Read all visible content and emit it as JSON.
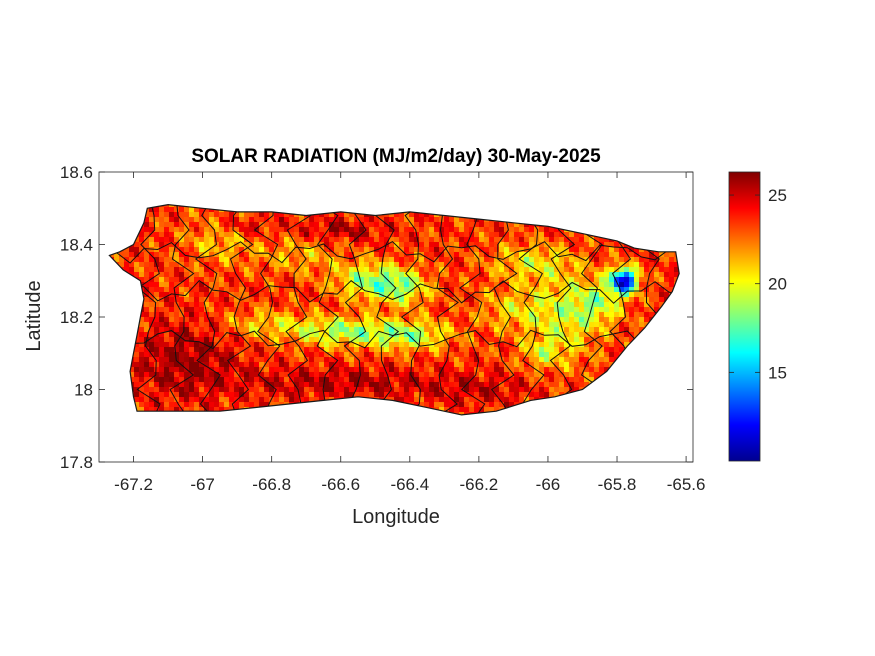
{
  "chart_data": {
    "type": "heatmap",
    "title": "SOLAR RADIATION (MJ/m2/day) 30-May-2025",
    "xlabel": "Longitude",
    "ylabel": "Latitude",
    "xlim": [
      -67.3,
      -65.58
    ],
    "ylim": [
      17.8,
      18.6
    ],
    "xticks": [
      "-67.2",
      "-67",
      "-66.8",
      "-66.6",
      "-66.4",
      "-66.2",
      "-66",
      "-65.8",
      "-65.6"
    ],
    "xtick_values": [
      -67.2,
      -67.0,
      -66.8,
      -66.6,
      -66.4,
      -66.2,
      -66.0,
      -65.8,
      -65.6
    ],
    "yticks": [
      "17.8",
      "18",
      "18.2",
      "18.4",
      "18.6"
    ],
    "ytick_values": [
      17.8,
      18.0,
      18.2,
      18.4,
      18.6
    ],
    "colorbar": {
      "colormap": "jet",
      "clim": [
        10,
        26.3
      ],
      "ticks": [
        "15",
        "20",
        "25"
      ],
      "tick_values": [
        15,
        20,
        25
      ]
    },
    "island_outline": [
      [
        -67.27,
        18.37
      ],
      [
        -67.24,
        18.38
      ],
      [
        -67.2,
        18.4
      ],
      [
        -67.17,
        18.46
      ],
      [
        -67.16,
        18.5
      ],
      [
        -67.1,
        18.51
      ],
      [
        -67.0,
        18.5
      ],
      [
        -66.9,
        18.49
      ],
      [
        -66.8,
        18.49
      ],
      [
        -66.7,
        18.48
      ],
      [
        -66.6,
        18.49
      ],
      [
        -66.5,
        18.48
      ],
      [
        -66.4,
        18.49
      ],
      [
        -66.3,
        18.48
      ],
      [
        -66.2,
        18.47
      ],
      [
        -66.1,
        18.46
      ],
      [
        -66.0,
        18.45
      ],
      [
        -65.9,
        18.43
      ],
      [
        -65.8,
        18.41
      ],
      [
        -65.75,
        18.39
      ],
      [
        -65.68,
        18.38
      ],
      [
        -65.63,
        18.38
      ],
      [
        -65.62,
        18.32
      ],
      [
        -65.64,
        18.27
      ],
      [
        -65.67,
        18.23
      ],
      [
        -65.72,
        18.17
      ],
      [
        -65.77,
        18.12
      ],
      [
        -65.83,
        18.05
      ],
      [
        -65.9,
        18.0
      ],
      [
        -65.98,
        17.98
      ],
      [
        -66.05,
        17.97
      ],
      [
        -66.15,
        17.94
      ],
      [
        -66.25,
        17.93
      ],
      [
        -66.35,
        17.95
      ],
      [
        -66.45,
        17.97
      ],
      [
        -66.55,
        17.98
      ],
      [
        -66.65,
        17.97
      ],
      [
        -66.75,
        17.96
      ],
      [
        -66.85,
        17.95
      ],
      [
        -66.95,
        17.94
      ],
      [
        -67.05,
        17.94
      ],
      [
        -67.15,
        17.94
      ],
      [
        -67.19,
        17.94
      ],
      [
        -67.2,
        17.98
      ],
      [
        -67.21,
        18.05
      ],
      [
        -67.2,
        18.1
      ],
      [
        -67.19,
        18.15
      ],
      [
        -67.18,
        18.2
      ],
      [
        -67.17,
        18.25
      ],
      [
        -67.18,
        18.3
      ],
      [
        -67.23,
        18.33
      ],
      [
        -67.27,
        18.37
      ]
    ],
    "field_base": 23.5,
    "field_features": [
      {
        "lon": -66.95,
        "lat": 18.42,
        "amp": -2.5,
        "rlon": 0.1,
        "rlat": 0.07
      },
      {
        "lon": -66.72,
        "lat": 18.37,
        "amp": -2.0,
        "rlon": 0.12,
        "rlat": 0.05
      },
      {
        "lon": -66.52,
        "lat": 18.3,
        "amp": -4.5,
        "rlon": 0.1,
        "rlat": 0.05
      },
      {
        "lon": -66.42,
        "lat": 18.28,
        "amp": -4.0,
        "rlon": 0.08,
        "rlat": 0.05
      },
      {
        "lon": -66.6,
        "lat": 18.16,
        "amp": -4.5,
        "rlon": 0.14,
        "rlat": 0.04
      },
      {
        "lon": -66.4,
        "lat": 18.15,
        "amp": -4.5,
        "rlon": 0.12,
        "rlat": 0.04
      },
      {
        "lon": -66.82,
        "lat": 18.18,
        "amp": -2.5,
        "rlon": 0.12,
        "rlat": 0.04
      },
      {
        "lon": -66.05,
        "lat": 18.35,
        "amp": -3.0,
        "rlon": 0.12,
        "rlat": 0.05
      },
      {
        "lon": -66.1,
        "lat": 18.22,
        "amp": -2.5,
        "rlon": 0.1,
        "rlat": 0.06
      },
      {
        "lon": -65.95,
        "lat": 18.2,
        "amp": -3.5,
        "rlon": 0.1,
        "rlat": 0.12
      },
      {
        "lon": -66.02,
        "lat": 18.1,
        "amp": -2.5,
        "rlon": 0.06,
        "rlat": 0.04
      },
      {
        "lon": -65.78,
        "lat": 18.3,
        "amp": -12.0,
        "rlon": 0.04,
        "rlat": 0.035
      },
      {
        "lon": -65.85,
        "lat": 18.24,
        "amp": -3.5,
        "rlon": 0.07,
        "rlat": 0.06
      },
      {
        "lon": -67.05,
        "lat": 18.08,
        "amp": 2.5,
        "rlon": 0.15,
        "rlat": 0.1
      },
      {
        "lon": -66.9,
        "lat": 18.45,
        "amp": 2.0,
        "rlon": 0.1,
        "rlat": 0.03
      },
      {
        "lon": -66.6,
        "lat": 18.44,
        "amp": 2.0,
        "rlon": 0.12,
        "rlat": 0.03
      },
      {
        "lon": -66.6,
        "lat": 18.02,
        "amp": 2.0,
        "rlon": 0.3,
        "rlat": 0.04
      },
      {
        "lon": -66.2,
        "lat": 18.0,
        "amp": 1.5,
        "rlon": 0.15,
        "rlat": 0.04
      }
    ]
  }
}
